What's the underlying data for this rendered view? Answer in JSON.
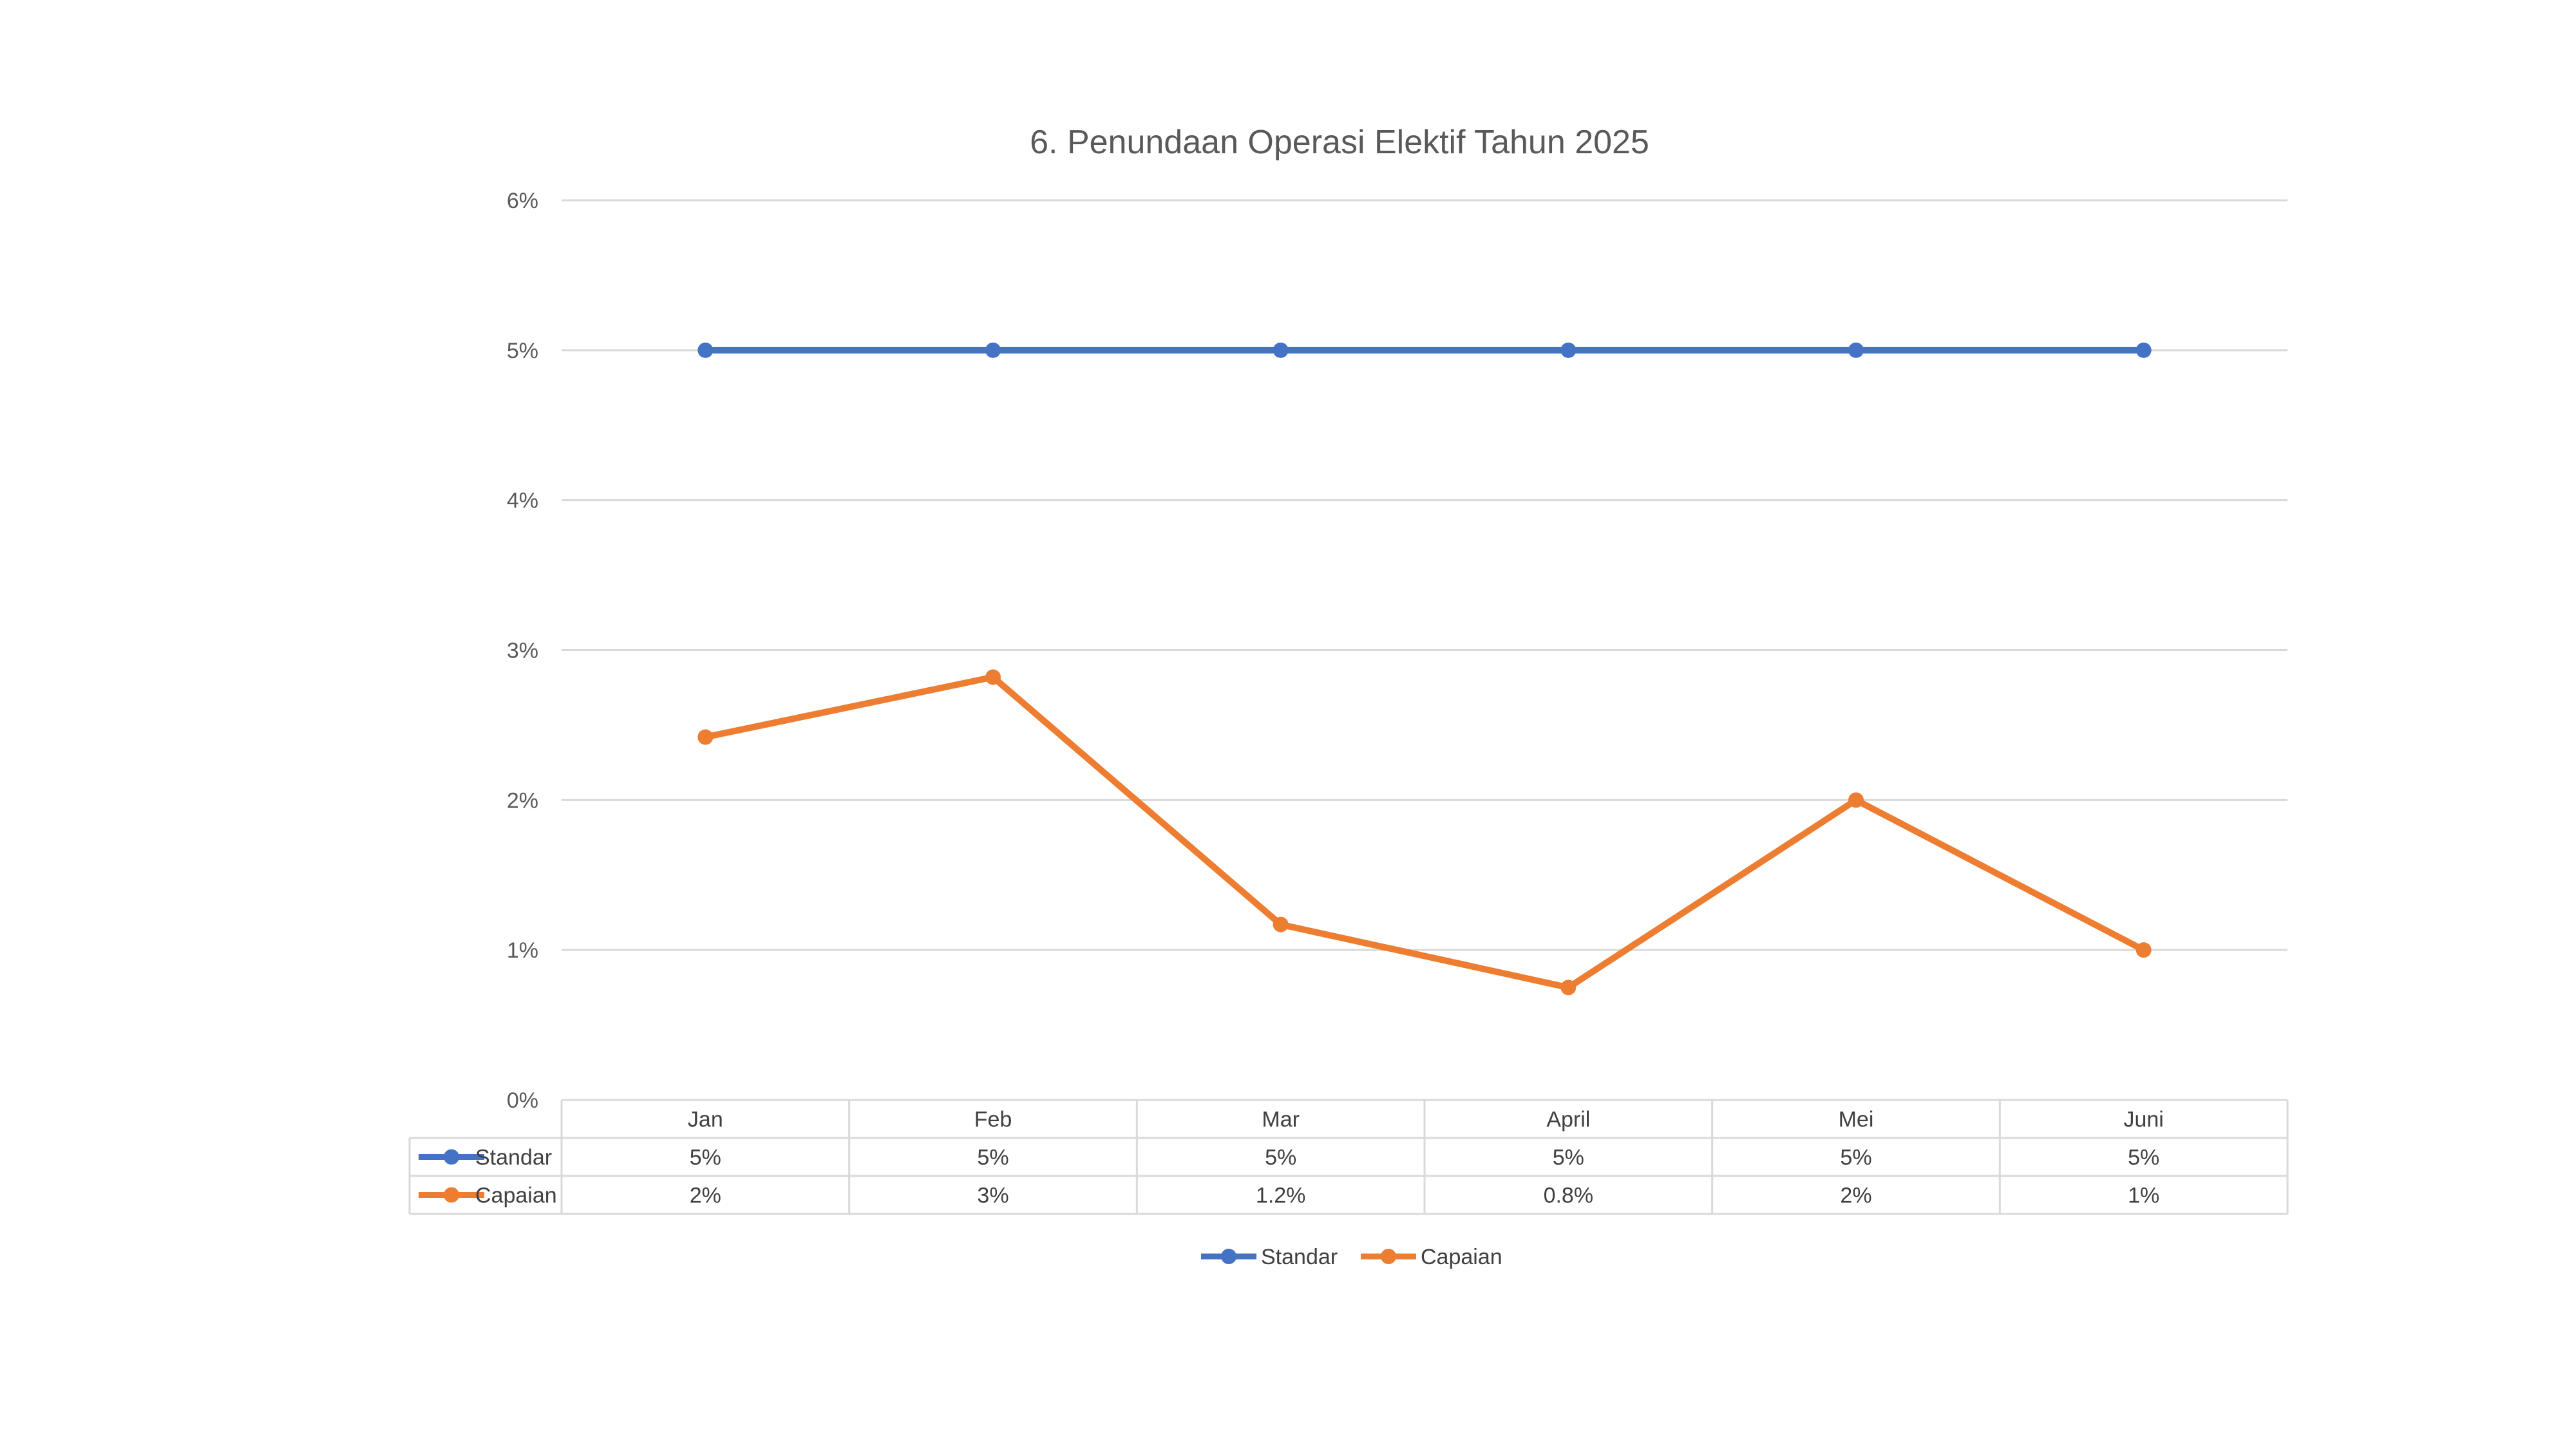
{
  "chart_data": {
    "type": "line",
    "title": "6. Penundaan Operasi Elektif Tahun 2025",
    "categories": [
      "Jan",
      "Feb",
      "Mar",
      "April",
      "Mei",
      "Juni"
    ],
    "y_ticks": [
      "0%",
      "1%",
      "2%",
      "3%",
      "4%",
      "5%",
      "6%"
    ],
    "ylim": [
      0,
      6
    ],
    "grid": true,
    "legend_position": "bottom",
    "data_table": true,
    "series": [
      {
        "name": "Standar",
        "color": "#4472c4",
        "values": [
          5,
          5,
          5,
          5,
          5,
          5
        ],
        "table_labels": [
          "5%",
          "5%",
          "5%",
          "5%",
          "5%",
          "5%"
        ]
      },
      {
        "name": "Capaian",
        "color": "#ed7d31",
        "values": [
          2.42,
          2.82,
          1.17,
          0.75,
          2.0,
          1.0
        ],
        "table_labels": [
          "2%",
          "3%",
          "1.2%",
          "0.8%",
          "2%",
          "1%"
        ]
      }
    ]
  }
}
